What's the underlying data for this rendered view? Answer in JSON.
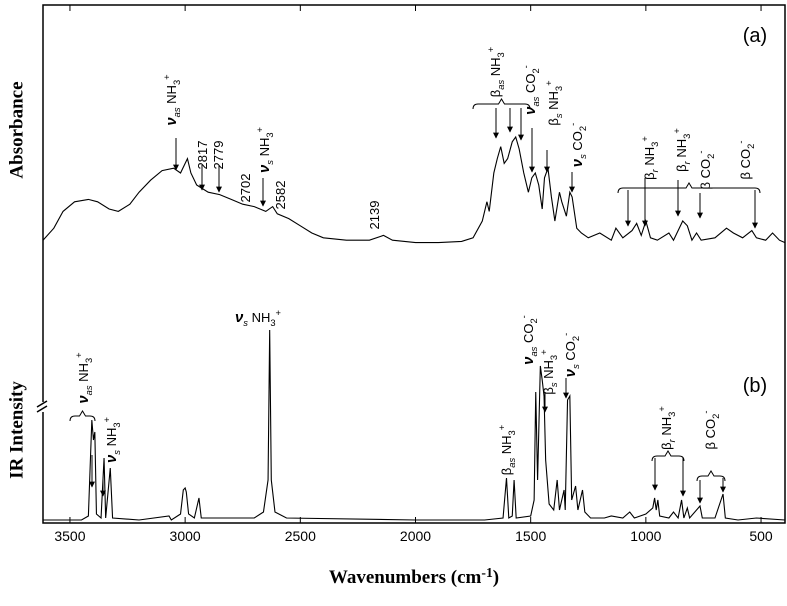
{
  "chart_data": [
    {
      "type": "line",
      "color": "#000000",
      "ylabel": "Absorbance",
      "xlim": [
        3617,
        396
      ],
      "ylim": [
        0,
        100
      ],
      "x": [
        3617,
        3570,
        3530,
        3480,
        3420,
        3380,
        3330,
        3290,
        3240,
        3200,
        3150,
        3100,
        3050,
        3020,
        2990,
        2975,
        2950,
        2900,
        2850,
        2800,
        2750,
        2700,
        2650,
        2620,
        2600,
        2550,
        2500,
        2450,
        2400,
        2300,
        2200,
        2139,
        2100,
        2000,
        1900,
        1800,
        1750,
        1710,
        1690,
        1680,
        1660,
        1645,
        1630,
        1615,
        1600,
        1580,
        1565,
        1550,
        1530,
        1510,
        1495,
        1480,
        1465,
        1450,
        1440,
        1425,
        1410,
        1395,
        1375,
        1365,
        1345,
        1330,
        1320,
        1300,
        1280,
        1250,
        1200,
        1150,
        1130,
        1100,
        1060,
        1040,
        1020,
        1000,
        980,
        950,
        900,
        880,
        840,
        820,
        800,
        780,
        760,
        700,
        650,
        620,
        580,
        540,
        520,
        480,
        450,
        420,
        396
      ],
      "values": [
        2,
        7,
        14,
        18,
        19,
        18,
        15,
        14,
        17,
        22,
        27,
        31,
        32,
        30,
        36,
        30,
        25,
        22,
        21,
        19,
        17,
        16,
        14,
        16,
        13,
        11,
        8,
        5,
        3,
        2,
        2,
        4,
        2,
        1,
        1,
        1.5,
        3,
        10,
        18,
        14,
        30,
        36,
        41,
        34,
        36,
        43,
        45,
        40,
        30,
        22,
        28,
        30,
        25,
        15,
        28,
        32,
        20,
        10,
        22,
        18,
        12,
        22,
        20,
        7,
        5,
        3,
        5,
        2,
        7,
        3,
        6,
        9,
        4,
        10,
        3,
        2,
        5,
        2,
        10,
        8,
        2,
        5,
        2,
        3,
        7,
        5,
        3,
        6,
        3,
        2,
        5,
        2,
        1
      ],
      "annotations": [
        [
          {
            "text": "(a)",
            "style": "plain"
          }
        ],
        [
          {
            "text": "ν",
            "style": "nu"
          },
          {
            "text": "as",
            "style": "subi"
          },
          {
            "text": " NH",
            "style": "plain"
          },
          {
            "text": "3",
            "style": "sub"
          },
          {
            "text": "+",
            "style": "sup"
          }
        ],
        [
          {
            "text": "2817",
            "style": "plain"
          }
        ],
        [
          {
            "text": "2779",
            "style": "plain"
          }
        ],
        [
          {
            "text": "2702",
            "style": "plain"
          }
        ],
        [
          {
            "text": "ν",
            "style": "nu"
          },
          {
            "text": "s",
            "style": "subi"
          },
          {
            "text": " NH",
            "style": "plain"
          },
          {
            "text": "3",
            "style": "sub"
          },
          {
            "text": "+",
            "style": "sup"
          }
        ],
        [
          {
            "text": "2582",
            "style": "plain"
          }
        ],
        [
          {
            "text": "2139",
            "style": "plain"
          }
        ],
        [
          {
            "text": "β",
            "style": "plain"
          },
          {
            "text": "as",
            "style": "subi"
          },
          {
            "text": " NH",
            "style": "plain"
          },
          {
            "text": "3",
            "style": "sub"
          },
          {
            "text": "+",
            "style": "sup"
          }
        ],
        [
          {
            "text": "ν",
            "style": "nu"
          },
          {
            "text": "as",
            "style": "subi"
          },
          {
            "text": " CO",
            "style": "plain"
          },
          {
            "text": "2",
            "style": "sub"
          },
          {
            "text": "-",
            "style": "sup"
          }
        ],
        [
          {
            "text": "β",
            "style": "plain"
          },
          {
            "text": "s",
            "style": "subi"
          },
          {
            "text": " NH",
            "style": "plain"
          },
          {
            "text": "3",
            "style": "sub"
          },
          {
            "text": "+",
            "style": "sup"
          }
        ],
        [
          {
            "text": "ν",
            "style": "nu"
          },
          {
            "text": "s",
            "style": "subi"
          },
          {
            "text": " CO",
            "style": "plain"
          },
          {
            "text": "2",
            "style": "sub"
          },
          {
            "text": "-",
            "style": "sup"
          }
        ],
        [
          {
            "text": "β",
            "style": "plain"
          },
          {
            "text": "r",
            "style": "subi"
          },
          {
            "text": " NH",
            "style": "plain"
          },
          {
            "text": "3",
            "style": "sub"
          },
          {
            "text": "+",
            "style": "sup"
          }
        ],
        [
          {
            "text": "β",
            "style": "plain"
          },
          {
            "text": "r",
            "style": "subi"
          },
          {
            "text": " NH",
            "style": "plain"
          },
          {
            "text": "3",
            "style": "sub"
          },
          {
            "text": "+",
            "style": "sup"
          }
        ],
        [
          {
            "text": "β CO",
            "style": "plain"
          },
          {
            "text": "2",
            "style": "sub"
          },
          {
            "text": "-",
            "style": "sup"
          }
        ],
        [
          {
            "text": "β CO",
            "style": "plain"
          },
          {
            "text": "2",
            "style": "sub"
          },
          {
            "text": "-",
            "style": "sup"
          }
        ]
      ]
    },
    {
      "type": "line",
      "color": "#000000",
      "ylabel": "IR Intensity",
      "xlabel": [
        {
          "text": "Wavenumbers (cm",
          "style": "plain"
        },
        {
          "text": "-1",
          "style": "sup"
        },
        {
          "text": ")",
          "style": "plain"
        }
      ],
      "xlim": [
        3617,
        396
      ],
      "ylim": [
        0,
        100
      ],
      "xticks": [
        3500,
        3000,
        2500,
        2000,
        1500,
        1000,
        500
      ],
      "x": [
        3617,
        3450,
        3420,
        3405,
        3398,
        3392,
        3385,
        3365,
        3352,
        3345,
        3325,
        3315,
        3200,
        3070,
        3060,
        3020,
        3008,
        3000,
        2995,
        2985,
        2960,
        2940,
        2930,
        2700,
        2660,
        2640,
        2633,
        2626,
        2610,
        2560,
        2000,
        1700,
        1620,
        1605,
        1595,
        1580,
        1572,
        1563,
        1500,
        1485,
        1478,
        1470,
        1458,
        1450,
        1442,
        1435,
        1420,
        1400,
        1385,
        1375,
        1355,
        1350,
        1340,
        1330,
        1322,
        1305,
        1295,
        1275,
        1265,
        1240,
        1180,
        1150,
        1100,
        1070,
        1050,
        1000,
        970,
        962,
        955,
        948,
        940,
        900,
        880,
        860,
        845,
        835,
        820,
        810,
        765,
        755,
        700,
        665,
        655,
        600,
        520,
        396
      ],
      "values": [
        0,
        0,
        2,
        50,
        40,
        44,
        3,
        1,
        31,
        1,
        26,
        1,
        0,
        2,
        0,
        3,
        15,
        16,
        14,
        3,
        1,
        11,
        1,
        1,
        4,
        20,
        95,
        20,
        4,
        1,
        0,
        0,
        1,
        21,
        1,
        2,
        20,
        1,
        2,
        10,
        64,
        20,
        77,
        70,
        62,
        30,
        8,
        5,
        20,
        5,
        15,
        5,
        60,
        62,
        10,
        17,
        5,
        15,
        4,
        1,
        1,
        2,
        1,
        4,
        1,
        3,
        6,
        11,
        5,
        10,
        2,
        1,
        4,
        1,
        10,
        1,
        6,
        1,
        7,
        1,
        1,
        13,
        1,
        0,
        1,
        0
      ],
      "annotations": [
        [
          {
            "text": "ν",
            "style": "nu"
          },
          {
            "text": "as",
            "style": "subi"
          },
          {
            "text": " NH",
            "style": "plain"
          },
          {
            "text": "3",
            "style": "sub"
          },
          {
            "text": "+",
            "style": "sup"
          }
        ],
        [
          {
            "text": "ν",
            "style": "nu"
          },
          {
            "text": "s",
            "style": "subi"
          },
          {
            "text": " NH",
            "style": "plain"
          },
          {
            "text": "3",
            "style": "sub"
          },
          {
            "text": "+",
            "style": "sup"
          }
        ],
        [
          {
            "text": "ν",
            "style": "nu"
          },
          {
            "text": "s",
            "style": "subi"
          },
          {
            "text": " NH",
            "style": "plain"
          },
          {
            "text": "3",
            "style": "sub"
          },
          {
            "text": "+",
            "style": "sup"
          }
        ],
        [
          {
            "text": "β",
            "style": "plain"
          },
          {
            "text": "as",
            "style": "subi"
          },
          {
            "text": " NH",
            "style": "plain"
          },
          {
            "text": "3",
            "style": "sub"
          },
          {
            "text": "+",
            "style": "sup"
          }
        ],
        [
          {
            "text": "ν",
            "style": "nu"
          },
          {
            "text": "as",
            "style": "subi"
          },
          {
            "text": " CO",
            "style": "plain"
          },
          {
            "text": "2",
            "style": "sub"
          },
          {
            "text": "-",
            "style": "sup"
          }
        ],
        [
          {
            "text": "β",
            "style": "plain"
          },
          {
            "text": "s",
            "style": "subi"
          },
          {
            "text": " NH",
            "style": "plain"
          },
          {
            "text": "3",
            "style": "sub"
          },
          {
            "text": "+",
            "style": "sup"
          }
        ],
        [
          {
            "text": "ν",
            "style": "nu"
          },
          {
            "text": "s",
            "style": "subi"
          },
          {
            "text": " CO",
            "style": "plain"
          },
          {
            "text": "2",
            "style": "sub"
          },
          {
            "text": "-",
            "style": "sup"
          }
        ],
        [
          {
            "text": "(b)",
            "style": "plain"
          }
        ],
        [
          {
            "text": "β",
            "style": "plain"
          },
          {
            "text": "r",
            "style": "subi"
          },
          {
            "text": " NH",
            "style": "plain"
          },
          {
            "text": "3",
            "style": "sub"
          },
          {
            "text": "+",
            "style": "sup"
          }
        ],
        [
          {
            "text": "β CO",
            "style": "plain"
          },
          {
            "text": "2",
            "style": "sub"
          },
          {
            "text": "-",
            "style": "sup"
          }
        ]
      ]
    }
  ]
}
